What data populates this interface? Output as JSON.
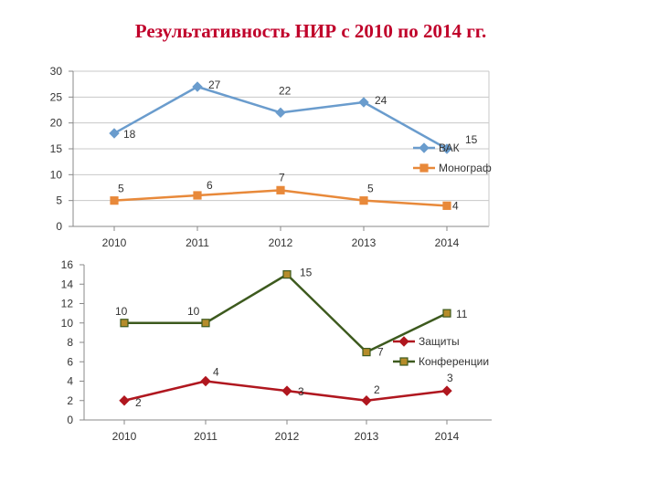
{
  "title": "Результативность НИР с 2010 по 2014 гг.",
  "chart_data": [
    {
      "type": "line",
      "categories": [
        "2010",
        "2011",
        "2012",
        "2013",
        "2014"
      ],
      "ylim": [
        0,
        30
      ],
      "yticks": [
        "0",
        "5",
        "10",
        "15",
        "20",
        "25",
        "30"
      ],
      "grid": true,
      "legend_position": "right",
      "series": [
        {
          "name": "ВАК",
          "values": [
            18,
            27,
            22,
            24,
            15
          ],
          "labels": [
            "18",
            "27",
            "22",
            "24",
            "15"
          ],
          "color": "#6a9ccd",
          "marker": "diamond"
        },
        {
          "name": "Монограф",
          "values": [
            5,
            6,
            7,
            5,
            4
          ],
          "labels": [
            "5",
            "6",
            "7",
            "5",
            "4"
          ],
          "color": "#e8893a",
          "marker": "square"
        }
      ]
    },
    {
      "type": "line",
      "categories": [
        "2010",
        "2011",
        "2012",
        "2013",
        "2014"
      ],
      "ylim": [
        0,
        16
      ],
      "yticks": [
        "0",
        "2",
        "4",
        "6",
        "8",
        "10",
        "12",
        "14",
        "16"
      ],
      "grid": false,
      "legend_position": "right",
      "series": [
        {
          "name": "Защиты",
          "values": [
            2,
            4,
            3,
            2,
            3
          ],
          "labels": [
            "2",
            "4",
            "3",
            "2",
            "3"
          ],
          "color": "#b0171f",
          "marker": "diamond"
        },
        {
          "name": "Конференции",
          "values": [
            10,
            10,
            15,
            7,
            11
          ],
          "labels": [
            "10",
            "10",
            "15",
            "7",
            "11"
          ],
          "color": "#3d5a1e",
          "marker": "square",
          "marker_fill": "#b58c2a"
        }
      ]
    }
  ]
}
